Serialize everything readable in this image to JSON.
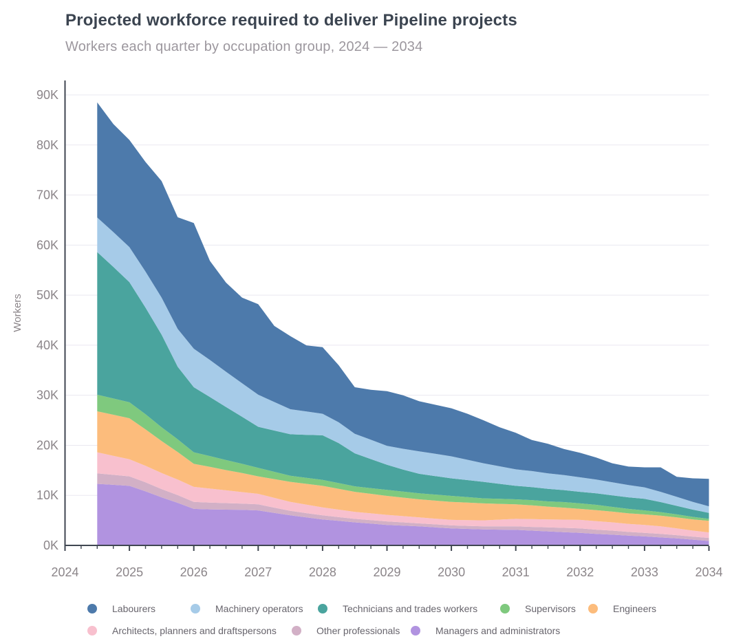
{
  "title": "Projected workforce required to deliver Pipeline projects",
  "subtitle": "Workers each quarter by occupation group, 2024 — 2034",
  "colors": {
    "background": "#ffffff",
    "axis_line": "#3f4651",
    "grid_line": "#eae8f0",
    "title_text": "#3b4450",
    "subtitle_text": "#9c979e",
    "axis_text": "#8b8589",
    "legend_text": "#67646c"
  },
  "chart_data": {
    "type": "area",
    "stacked": true,
    "title": "Projected workforce required to deliver Pipeline projects",
    "subtitle": "Workers each quarter by occupation group, 2024 — 2034",
    "xlabel": "",
    "ylabel": "Workers",
    "unit": "thousands of workers (K)",
    "grid": "horizontal",
    "legend_position": "bottom",
    "x_axis_years": [
      "2024",
      "2025",
      "2026",
      "2027",
      "2028",
      "2029",
      "2030",
      "2031",
      "2032",
      "2033",
      "2034"
    ],
    "y_tick_labels": [
      "0K",
      "10K",
      "20K",
      "30K",
      "40K",
      "50K",
      "60K",
      "70K",
      "80K",
      "90K"
    ],
    "ylim_thousands": [
      0,
      90
    ],
    "x_start": 2024.5,
    "x_step_years": 0.25,
    "x": [
      "2024 Q3",
      "2024 Q4",
      "2025 Q1",
      "2025 Q2",
      "2025 Q3",
      "2025 Q4",
      "2026 Q1",
      "2026 Q2",
      "2026 Q3",
      "2026 Q4",
      "2027 Q1",
      "2027 Q2",
      "2027 Q3",
      "2027 Q4",
      "2028 Q1",
      "2028 Q2",
      "2028 Q3",
      "2028 Q4",
      "2029 Q1",
      "2029 Q2",
      "2029 Q3",
      "2029 Q4",
      "2030 Q1",
      "2030 Q2",
      "2030 Q3",
      "2030 Q4",
      "2031 Q1",
      "2031 Q2",
      "2031 Q3",
      "2031 Q4",
      "2032 Q1",
      "2032 Q2",
      "2032 Q3",
      "2032 Q4",
      "2033 Q1",
      "2033 Q2",
      "2033 Q3",
      "2033 Q4",
      "2034 Q1"
    ],
    "series_order": "bottom of stack first",
    "series": [
      {
        "name": "Managers and administrators",
        "color": "#b193e0",
        "values": [
          12.3,
          12.1,
          11.9,
          10.8,
          9.6,
          8.5,
          7.3,
          7.2,
          7.15,
          7.1,
          7.0,
          6.5,
          6.0,
          5.6,
          5.2,
          4.9,
          4.6,
          4.35,
          4.1,
          3.95,
          3.8,
          3.6,
          3.4,
          3.3,
          3.2,
          3.15,
          3.1,
          2.95,
          2.8,
          2.65,
          2.5,
          2.3,
          2.15,
          1.95,
          1.8,
          1.6,
          1.4,
          1.15,
          0.9
        ]
      },
      {
        "name": "Other professionals",
        "color": "#d2b0c6",
        "values": [
          2.1,
          2.0,
          1.9,
          1.8,
          1.65,
          1.55,
          1.4,
          1.35,
          1.3,
          1.25,
          1.2,
          1.05,
          0.9,
          0.85,
          0.8,
          0.75,
          0.7,
          0.7,
          0.7,
          0.65,
          0.6,
          0.6,
          0.6,
          0.6,
          0.6,
          0.65,
          0.7,
          0.75,
          0.8,
          0.85,
          0.9,
          0.85,
          0.8,
          0.75,
          0.7,
          0.7,
          0.65,
          0.6,
          0.6
        ]
      },
      {
        "name": "Architects, planners and draftspersons",
        "color": "#f8c0ce",
        "values": [
          4.2,
          3.8,
          3.4,
          3.3,
          3.2,
          3.1,
          3.0,
          2.8,
          2.55,
          2.3,
          2.1,
          1.95,
          1.8,
          1.7,
          1.6,
          1.5,
          1.4,
          1.35,
          1.3,
          1.25,
          1.2,
          1.15,
          1.1,
          1.15,
          1.2,
          1.35,
          1.5,
          1.55,
          1.6,
          1.65,
          1.7,
          1.7,
          1.65,
          1.6,
          1.6,
          1.5,
          1.35,
          1.2,
          1.1
        ]
      },
      {
        "name": "Engineers",
        "color": "#fcbc7c",
        "values": [
          8.2,
          8.2,
          8.2,
          7.3,
          6.4,
          5.5,
          4.6,
          4.35,
          4.05,
          3.8,
          3.5,
          3.75,
          4.0,
          4.15,
          4.3,
          4.15,
          4.0,
          3.9,
          3.8,
          3.7,
          3.6,
          3.6,
          3.6,
          3.5,
          3.4,
          3.15,
          2.9,
          2.75,
          2.55,
          2.4,
          2.2,
          2.2,
          2.15,
          2.1,
          2.1,
          2.15,
          2.2,
          2.25,
          2.3
        ]
      },
      {
        "name": "Supervisors",
        "color": "#7fc97e",
        "values": [
          3.3,
          3.25,
          3.2,
          3.0,
          2.75,
          2.55,
          2.3,
          2.15,
          2.0,
          1.85,
          1.7,
          1.45,
          1.2,
          1.2,
          1.2,
          1.15,
          1.1,
          1.15,
          1.2,
          1.2,
          1.2,
          1.2,
          1.2,
          1.1,
          1.0,
          1.0,
          1.0,
          1.05,
          1.05,
          1.1,
          1.1,
          1.05,
          0.95,
          0.9,
          0.8,
          0.7,
          0.6,
          0.5,
          0.4
        ]
      },
      {
        "name": "Technicians and trades workers",
        "color": "#4aa49e",
        "values": [
          28.5,
          26.3,
          24.0,
          21.3,
          18.5,
          14.5,
          13.0,
          11.8,
          10.6,
          9.4,
          8.2,
          8.25,
          8.3,
          8.6,
          8.9,
          8.0,
          6.6,
          5.8,
          5.0,
          4.4,
          3.9,
          3.7,
          3.5,
          3.4,
          3.3,
          3.0,
          2.7,
          2.6,
          2.5,
          2.4,
          2.3,
          2.3,
          2.3,
          2.3,
          2.3,
          2.0,
          1.7,
          1.45,
          1.2
        ]
      },
      {
        "name": "Machinery operators",
        "color": "#a6cbe8",
        "values": [
          6.9,
          6.95,
          7.0,
          7.2,
          7.4,
          7.55,
          7.7,
          7.4,
          7.05,
          6.7,
          6.4,
          5.7,
          5.0,
          4.65,
          4.3,
          4.15,
          3.9,
          3.85,
          3.8,
          4.15,
          4.5,
          4.45,
          4.4,
          4.05,
          3.7,
          3.5,
          3.3,
          3.2,
          3.1,
          3.0,
          2.9,
          2.75,
          2.6,
          2.45,
          2.3,
          2.05,
          1.8,
          1.55,
          1.3
        ]
      },
      {
        "name": "Labourers",
        "color": "#4d7aab",
        "values": [
          23.0,
          21.6,
          21.4,
          21.9,
          23.3,
          22.3,
          25.1,
          19.8,
          17.8,
          17.1,
          18.1,
          15.2,
          14.6,
          13.2,
          13.3,
          11.4,
          9.3,
          10.0,
          10.9,
          10.7,
          10.0,
          9.8,
          9.6,
          9.2,
          8.6,
          7.8,
          7.3,
          6.2,
          5.9,
          5.2,
          4.9,
          4.4,
          3.8,
          3.7,
          4.0,
          4.9,
          4.0,
          4.7,
          5.5
        ]
      }
    ],
    "totals_thousands": [
      88.5,
      84.2,
      81.0,
      76.6,
      72.8,
      65.5,
      64.4,
      56.8,
      52.5,
      49.5,
      48.2,
      43.8,
      41.8,
      39.9,
      39.6,
      36.0,
      31.6,
      31.1,
      30.8,
      30.0,
      28.8,
      28.1,
      27.4,
      26.3,
      25.0,
      23.6,
      22.5,
      21.0,
      20.3,
      19.2,
      18.5,
      17.5,
      16.4,
      15.7,
      15.6,
      15.6,
      13.7,
      13.4,
      13.3
    ]
  }
}
